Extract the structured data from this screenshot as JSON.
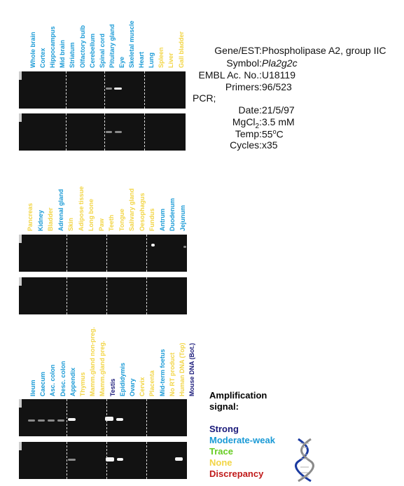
{
  "info": {
    "gene_label": "Gene/EST:",
    "gene_value": "Phospholipase A2, group IIC",
    "symbol_label": "Symbol:",
    "symbol_value": "Pla2g2c",
    "embl_label": "EMBL Ac. No.:",
    "embl_value": "U18119",
    "primers_label": "Primers:",
    "primers_value": "96/523",
    "pcr_label": "PCR;",
    "date_label": "Date:",
    "date_value": "21/5/97",
    "mgcl_label": "MgCl",
    "mgcl_sub": "2",
    "mgcl_colon": ":",
    "mgcl_value": "3.5 mM",
    "temp_label": "Temp:",
    "temp_value": "55",
    "temp_sup": "o",
    "temp_unit": "C",
    "cycles_label": "Cycles:",
    "cycles_value": "x35"
  },
  "colors": {
    "strong": "#1a1a7a",
    "moderate": "#1a9ad6",
    "trace": "#66cc22",
    "none": "#f2d545",
    "discrepancy": "#c01a1a"
  },
  "panel1": {
    "labels": [
      {
        "text": "Whole brain",
        "cls": "moderate"
      },
      {
        "text": "Cortex",
        "cls": "moderate"
      },
      {
        "text": "Hippocampus",
        "cls": "moderate"
      },
      {
        "text": "Mid brain",
        "cls": "moderate"
      },
      {
        "text": "Striatum",
        "cls": "moderate"
      },
      {
        "text": "Olfactory bulb",
        "cls": "moderate"
      },
      {
        "text": "Cerebellum",
        "cls": "moderate"
      },
      {
        "text": "Spinal cord",
        "cls": "moderate"
      },
      {
        "text": "Pituitary gland",
        "cls": "moderate"
      },
      {
        "text": "Eye",
        "cls": "moderate"
      },
      {
        "text": "Skeletal muscle",
        "cls": "moderate"
      },
      {
        "text": "Heart",
        "cls": "moderate"
      },
      {
        "text": "Lung",
        "cls": "moderate"
      },
      {
        "text": "Spleen",
        "cls": "none"
      },
      {
        "text": "Liver",
        "cls": "none"
      },
      {
        "text": "Gall bladder",
        "cls": "none"
      }
    ]
  },
  "panel2": {
    "labels": [
      {
        "text": "Pancreas",
        "cls": "none"
      },
      {
        "text": "Kidney",
        "cls": "moderate"
      },
      {
        "text": "Bladder",
        "cls": "none"
      },
      {
        "text": "Adrenal gland",
        "cls": "moderate"
      },
      {
        "text": "Skin",
        "cls": "none"
      },
      {
        "text": "Adipose tissue",
        "cls": "none"
      },
      {
        "text": "Long bone",
        "cls": "none"
      },
      {
        "text": "Paw",
        "cls": "none"
      },
      {
        "text": "Teeth",
        "cls": "none"
      },
      {
        "text": "Tongue",
        "cls": "none"
      },
      {
        "text": "Salivary gland",
        "cls": "none"
      },
      {
        "text": "Oesophagus",
        "cls": "none"
      },
      {
        "text": "Fundus",
        "cls": "none"
      },
      {
        "text": "Antrum",
        "cls": "moderate"
      },
      {
        "text": "Duodenum",
        "cls": "moderate"
      },
      {
        "text": "Jejunum",
        "cls": "moderate"
      }
    ]
  },
  "panel3": {
    "labels": [
      {
        "text": "Ileum",
        "cls": "moderate"
      },
      {
        "text": "Caecum",
        "cls": "moderate"
      },
      {
        "text": "Asc. colon",
        "cls": "moderate"
      },
      {
        "text": "Desc. colon",
        "cls": "moderate"
      },
      {
        "text": "Appendix",
        "cls": "moderate"
      },
      {
        "text": "Thymus",
        "cls": "none"
      },
      {
        "text": "Mamm.gland non-preg.",
        "cls": "none"
      },
      {
        "text": "Mamm.gland preg.",
        "cls": "none"
      },
      {
        "text": "Testis",
        "cls": "strong"
      },
      {
        "text": "Epididymis",
        "cls": "moderate"
      },
      {
        "text": "Ovary",
        "cls": "moderate"
      },
      {
        "text": "Cervix",
        "cls": "none"
      },
      {
        "text": "Placenta",
        "cls": "none"
      },
      {
        "text": "Mid-term foetus",
        "cls": "moderate"
      },
      {
        "text": "No RT product",
        "cls": "none"
      },
      {
        "text": "Human DNA (Top)",
        "cls": "none"
      },
      {
        "text": "Mouse DNA (Bot.)",
        "cls": "strong"
      }
    ]
  },
  "legend": {
    "title_line1": "Amplification",
    "title_line2": "signal:",
    "strong": "Strong",
    "moderate": "Moderate-weak",
    "trace": "Trace",
    "none": "None",
    "discrepancy": "Discrepancy"
  }
}
